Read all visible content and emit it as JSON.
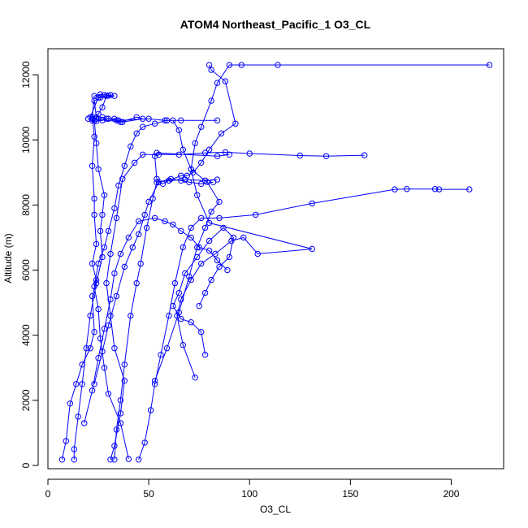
{
  "chart_data": {
    "type": "line",
    "title": "ATOM4 Northeast_Pacific_1 O3_CL",
    "xlabel": "O3_CL",
    "ylabel": "Altitude (m)",
    "xlim": [
      0,
      226
    ],
    "ylim": [
      -100,
      12800
    ],
    "xticks": [
      0,
      50,
      100,
      150,
      200
    ],
    "yticks": [
      0,
      2000,
      4000,
      6000,
      8000,
      10000,
      12000
    ],
    "grid": false,
    "legend": "none",
    "color": "#0000ff",
    "marker": "open-circle",
    "series": [
      {
        "points": [
          [
            7,
            180
          ],
          [
            9,
            750
          ],
          [
            11,
            1900
          ],
          [
            14,
            2500
          ],
          [
            17,
            3100
          ],
          [
            21,
            3600
          ],
          [
            23,
            4100
          ],
          [
            22,
            5200
          ],
          [
            24,
            5700
          ],
          [
            22,
            6200
          ],
          [
            24,
            6800
          ],
          [
            23,
            7700
          ],
          [
            23,
            8200
          ],
          [
            22,
            9200
          ],
          [
            23,
            10100
          ],
          [
            22,
            10700
          ],
          [
            23,
            11350
          ],
          [
            26,
            11400
          ],
          [
            28,
            11380
          ],
          [
            30,
            11360
          ],
          [
            33,
            11350
          ],
          [
            26,
            11300
          ],
          [
            23,
            11200
          ],
          [
            24,
            10700
          ],
          [
            27,
            10700
          ],
          [
            29,
            10650
          ],
          [
            33,
            10650
          ],
          [
            35,
            10600
          ],
          [
            50,
            10650
          ],
          [
            58,
            10600
          ],
          [
            66,
            10600
          ],
          [
            84,
            10600
          ]
        ]
      },
      {
        "points": [
          [
            13,
            180
          ],
          [
            13,
            500
          ],
          [
            15,
            1500
          ],
          [
            17,
            2500
          ],
          [
            19,
            3600
          ],
          [
            21,
            4600
          ],
          [
            24,
            5600
          ],
          [
            27,
            6400
          ],
          [
            26,
            7200
          ],
          [
            27,
            7700
          ],
          [
            28,
            8300
          ],
          [
            25,
            9100
          ],
          [
            24,
            9900
          ],
          [
            23,
            10600
          ],
          [
            25,
            10800
          ],
          [
            27,
            11000
          ],
          [
            29,
            11350
          ],
          [
            31,
            11380
          ],
          [
            25,
            11300
          ],
          [
            21,
            10700
          ],
          [
            24,
            10650
          ]
        ]
      },
      {
        "points": [
          [
            31,
            180
          ],
          [
            33,
            600
          ],
          [
            36,
            1600
          ],
          [
            38,
            2600
          ],
          [
            33,
            3600
          ],
          [
            31,
            4600
          ],
          [
            29,
            5600
          ],
          [
            31,
            6500
          ],
          [
            34,
            7600
          ],
          [
            37,
            8800
          ],
          [
            43,
            9300
          ],
          [
            47,
            9550
          ],
          [
            55,
            9550
          ],
          [
            65,
            9550
          ],
          [
            78,
            9600
          ],
          [
            88,
            9620
          ],
          [
            100,
            9580
          ],
          [
            125,
            9520
          ],
          [
            138,
            9500
          ],
          [
            157,
            9530
          ]
        ]
      },
      {
        "points": [
          [
            33,
            180
          ],
          [
            34,
            1100
          ],
          [
            36,
            2000
          ],
          [
            38,
            3100
          ],
          [
            41,
            4600
          ],
          [
            44,
            5600
          ],
          [
            46,
            6200
          ],
          [
            49,
            7300
          ],
          [
            52,
            8200
          ],
          [
            54,
            8700
          ],
          [
            60,
            8750
          ],
          [
            68,
            8780
          ],
          [
            78,
            8750
          ],
          [
            84,
            8780
          ]
        ]
      },
      {
        "points": [
          [
            45,
            180
          ],
          [
            48,
            700
          ],
          [
            51,
            1700
          ],
          [
            53,
            2500
          ],
          [
            56,
            3400
          ],
          [
            60,
            4600
          ],
          [
            63,
            5600
          ],
          [
            67,
            6700
          ],
          [
            71,
            7300
          ],
          [
            76,
            7600
          ],
          [
            85,
            7600
          ],
          [
            103,
            7700
          ],
          [
            131,
            8050
          ],
          [
            172,
            8480
          ],
          [
            178,
            8490
          ],
          [
            192,
            8490
          ],
          [
            194,
            8480
          ],
          [
            209,
            8480
          ]
        ]
      },
      {
        "points": [
          [
            53,
            2600
          ],
          [
            59,
            3600
          ],
          [
            65,
            4700
          ],
          [
            70,
            5800
          ],
          [
            74,
            6700
          ],
          [
            78,
            7300
          ],
          [
            81,
            7800
          ],
          [
            85,
            8100
          ],
          [
            79,
            8700
          ],
          [
            71,
            9100
          ],
          [
            67,
            9700
          ],
          [
            65,
            10300
          ],
          [
            62,
            10600
          ]
        ]
      },
      {
        "points": [
          [
            73,
            2700
          ],
          [
            67,
            3700
          ],
          [
            64,
            4600
          ],
          [
            66,
            5100
          ],
          [
            71,
            5700
          ],
          [
            76,
            6200
          ],
          [
            83,
            6500
          ],
          [
            91,
            6900
          ],
          [
            97,
            7000
          ],
          [
            104,
            6500
          ],
          [
            131,
            6650
          ],
          [
            80,
            7450
          ],
          [
            74,
            8300
          ],
          [
            71,
            9100
          ],
          [
            73,
            9900
          ],
          [
            76,
            10400
          ],
          [
            81,
            11200
          ],
          [
            84,
            11750
          ],
          [
            90,
            12300
          ],
          [
            96,
            12300
          ],
          [
            114,
            12300
          ],
          [
            219,
            12300
          ]
        ]
      },
      {
        "points": [
          [
            78,
            3400
          ],
          [
            76,
            4100
          ],
          [
            71,
            4400
          ],
          [
            66,
            4500
          ],
          [
            62,
            4900
          ],
          [
            65,
            5300
          ],
          [
            68,
            5900
          ],
          [
            74,
            6400
          ],
          [
            80,
            6900
          ],
          [
            87,
            7300
          ],
          [
            92,
            7000
          ],
          [
            90,
            6400
          ],
          [
            85,
            6100
          ],
          [
            81,
            5700
          ],
          [
            78,
            5300
          ],
          [
            75,
            4900
          ]
        ]
      },
      {
        "points": [
          [
            80,
            12300
          ],
          [
            81,
            12150
          ],
          [
            88,
            11800
          ],
          [
            93,
            10500
          ],
          [
            86,
            10200
          ],
          [
            80,
            9700
          ],
          [
            76,
            9300
          ],
          [
            72,
            9000
          ],
          [
            69,
            8900
          ],
          [
            66,
            8900
          ],
          [
            60,
            8750
          ],
          [
            57,
            8650
          ],
          [
            54,
            8800
          ],
          [
            53,
            9500
          ],
          [
            54,
            9600
          ],
          [
            84,
            9500
          ],
          [
            90,
            9550
          ]
        ]
      },
      {
        "points": [
          [
            20,
            10650
          ],
          [
            22,
            10600
          ],
          [
            24,
            10580
          ],
          [
            27,
            10600
          ],
          [
            30,
            10650
          ],
          [
            34,
            10600
          ],
          [
            36,
            10550
          ],
          [
            44,
            10700
          ],
          [
            47,
            10650
          ],
          [
            37,
            10550
          ],
          [
            22,
            10650
          ]
        ]
      },
      {
        "points": [
          [
            40,
            200
          ],
          [
            36,
            1300
          ],
          [
            30,
            2200
          ],
          [
            28,
            3000
          ],
          [
            26,
            3900
          ],
          [
            25,
            4800
          ],
          [
            23,
            5500
          ],
          [
            25,
            6200
          ],
          [
            28,
            6700
          ],
          [
            30,
            7200
          ],
          [
            33,
            7900
          ],
          [
            35,
            8600
          ],
          [
            38,
            9200
          ],
          [
            41,
            9800
          ],
          [
            44,
            10200
          ],
          [
            47,
            10400
          ],
          [
            53,
            10500
          ],
          [
            59,
            10600
          ]
        ]
      },
      {
        "points": [
          [
            23,
            2500
          ],
          [
            27,
            3500
          ],
          [
            30,
            4300
          ],
          [
            34,
            5200
          ],
          [
            38,
            6100
          ],
          [
            42,
            6700
          ],
          [
            45,
            7100
          ],
          [
            48,
            7700
          ],
          [
            50,
            8100
          ],
          [
            55,
            8700
          ],
          [
            61,
            8800
          ],
          [
            66,
            8750
          ],
          [
            70,
            8700
          ],
          [
            76,
            8650
          ],
          [
            82,
            8700
          ]
        ]
      },
      {
        "points": [
          [
            18,
            1300
          ],
          [
            22,
            2300
          ],
          [
            25,
            3300
          ],
          [
            28,
            4200
          ],
          [
            31,
            5100
          ],
          [
            33,
            5900
          ],
          [
            36,
            6500
          ],
          [
            40,
            7000
          ],
          [
            45,
            7500
          ],
          [
            53,
            7600
          ],
          [
            58,
            7500
          ],
          [
            62,
            7400
          ],
          [
            66,
            7200
          ],
          [
            71,
            7000
          ],
          [
            75,
            6700
          ],
          [
            80,
            6600
          ],
          [
            84,
            6300
          ],
          [
            89,
            6000
          ]
        ]
      }
    ]
  }
}
